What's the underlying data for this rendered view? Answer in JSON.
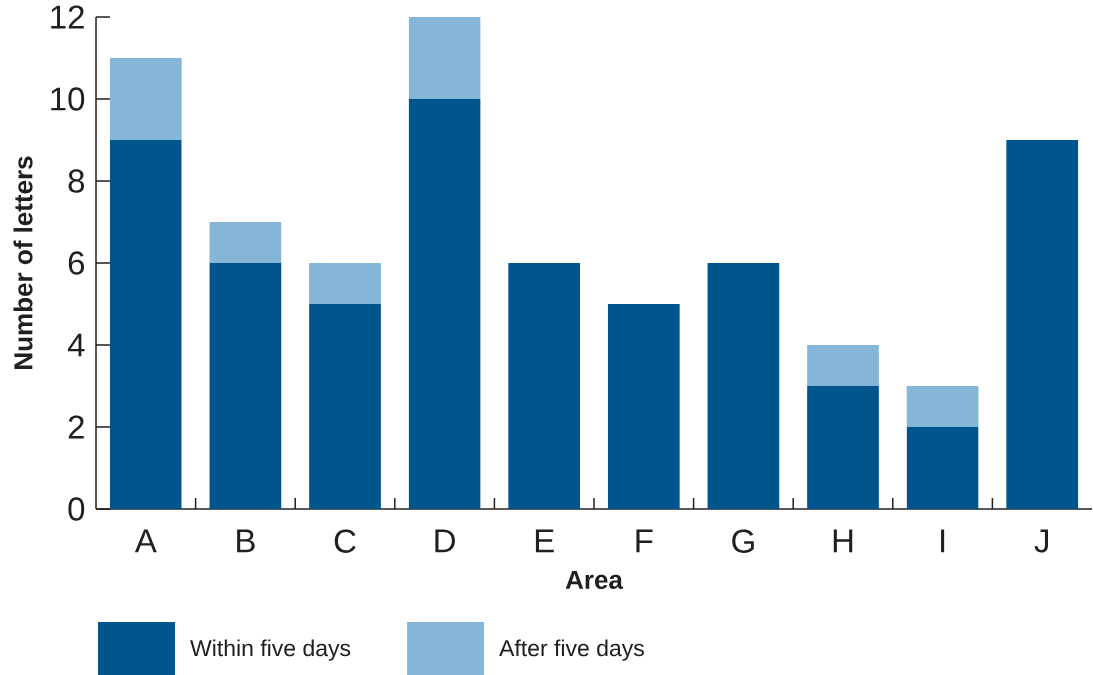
{
  "chart_data": {
    "type": "bar",
    "stacked": true,
    "xlabel": "Area",
    "ylabel": "Number of letters",
    "categories": [
      "A",
      "B",
      "C",
      "D",
      "E",
      "F",
      "G",
      "H",
      "I",
      "J"
    ],
    "series": [
      {
        "name": "Within five days",
        "color": "#00558c",
        "values": [
          9,
          6,
          5,
          10,
          6,
          5,
          6,
          3,
          2,
          9
        ]
      },
      {
        "name": "After five days",
        "color": "#85b6d8",
        "values": [
          2,
          1,
          1,
          2,
          0,
          0,
          0,
          1,
          1,
          0
        ]
      }
    ],
    "ylim": [
      0,
      12
    ],
    "yticks": [
      0,
      2,
      4,
      6,
      8,
      10,
      12
    ],
    "legend": "bottom"
  }
}
